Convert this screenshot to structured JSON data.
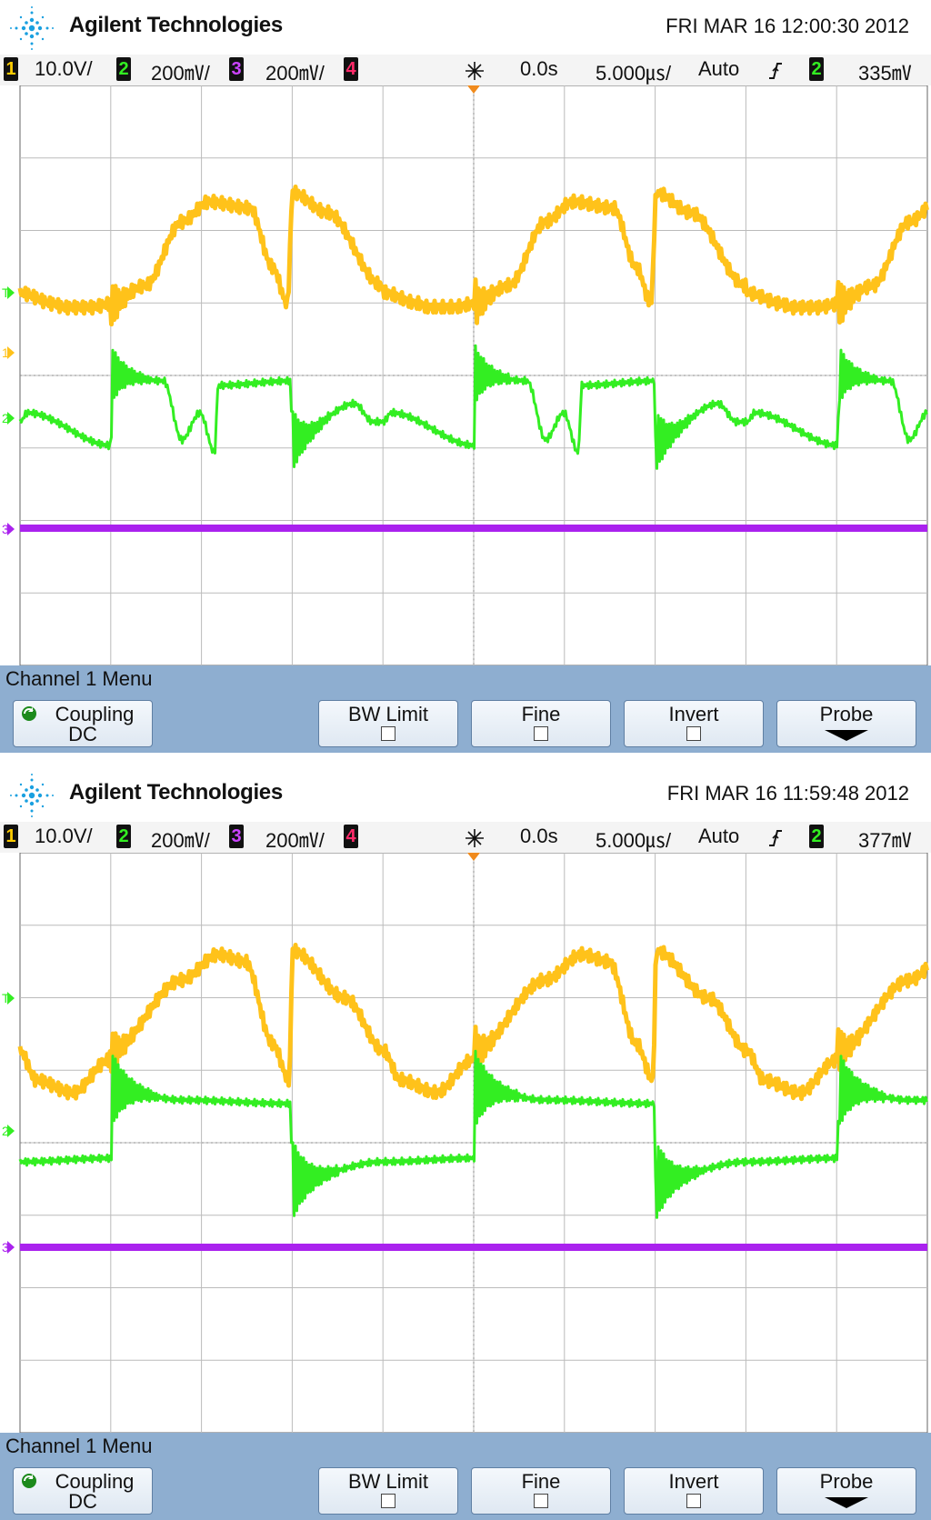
{
  "brand": "Agilent Technologies",
  "colors": {
    "ch1": "#ffc21a",
    "ch2": "#33ee22",
    "ch3": "#aa22ee",
    "ch4": "#ff2a6a",
    "menu": "#8eaed0"
  },
  "icons": {
    "logo": "agilent-spark-icon",
    "acq": "acquisition-run-icon",
    "trigger_edge": "rising-edge-icon",
    "coupling": "refresh-icon",
    "probe": "arrow-down-icon"
  },
  "scopes": [
    {
      "datetime": "FRI MAR 16 12:00:30 2012",
      "status": {
        "ch1_num": "1",
        "ch1_scale": "10.0V/",
        "ch2_num": "2",
        "ch2_scale": "200㎷/",
        "ch3_num": "3",
        "ch3_scale": "200㎷/",
        "ch4_num": "4",
        "delay": "0.0s",
        "timebase": "5.000㎲/",
        "mode": "Auto",
        "trig_src": "2",
        "trig_level": "335㎷"
      },
      "markers": {
        "trigger": "T",
        "ch1": "1",
        "ch2": "2",
        "ch3": "3"
      },
      "menu": {
        "title": "Channel 1  Menu",
        "coupling_label": "Coupling",
        "coupling_value": "DC",
        "bw_limit": "BW Limit",
        "fine": "Fine",
        "invert": "Invert",
        "probe": "Probe"
      }
    },
    {
      "datetime": "FRI MAR 16 11:59:48 2012",
      "status": {
        "ch1_num": "1",
        "ch1_scale": "10.0V/",
        "ch2_num": "2",
        "ch2_scale": "200㎷/",
        "ch3_num": "3",
        "ch3_scale": "200㎷/",
        "ch4_num": "4",
        "delay": "0.0s",
        "timebase": "5.000㎲/",
        "mode": "Auto",
        "trig_src": "2",
        "trig_level": "377㎷"
      },
      "markers": {
        "trigger": "T",
        "ch1": "",
        "ch2": "2",
        "ch3": "3"
      },
      "menu": {
        "title": "Channel 1  Menu",
        "coupling_label": "Coupling",
        "coupling_value": "DC",
        "bw_limit": "BW Limit",
        "fine": "Fine",
        "invert": "Invert",
        "probe": "Probe"
      }
    }
  ]
}
